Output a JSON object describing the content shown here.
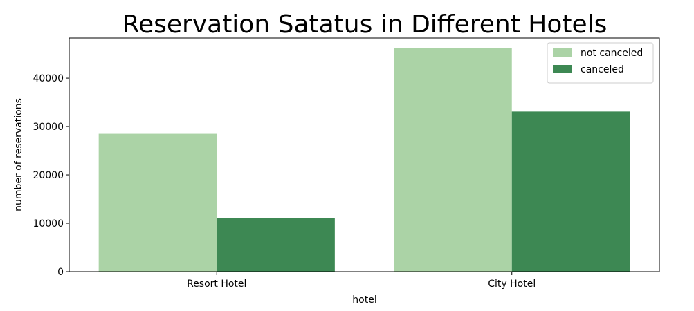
{
  "chart_data": {
    "type": "bar",
    "title": "Reservation Satatus in Different Hotels",
    "xlabel": "hotel",
    "ylabel": "number of reservations",
    "categories": [
      "Resort Hotel",
      "City Hotel"
    ],
    "series": [
      {
        "name": "not canceled",
        "color": "#abd3a6",
        "values": [
          28500,
          46200
        ]
      },
      {
        "name": "canceled",
        "color": "#3d8853",
        "values": [
          11100,
          33100
        ]
      }
    ],
    "ylim": [
      0,
      48300
    ],
    "yticks": [
      0,
      10000,
      20000,
      30000,
      40000
    ],
    "grid": false,
    "legend_position": "top-right"
  }
}
